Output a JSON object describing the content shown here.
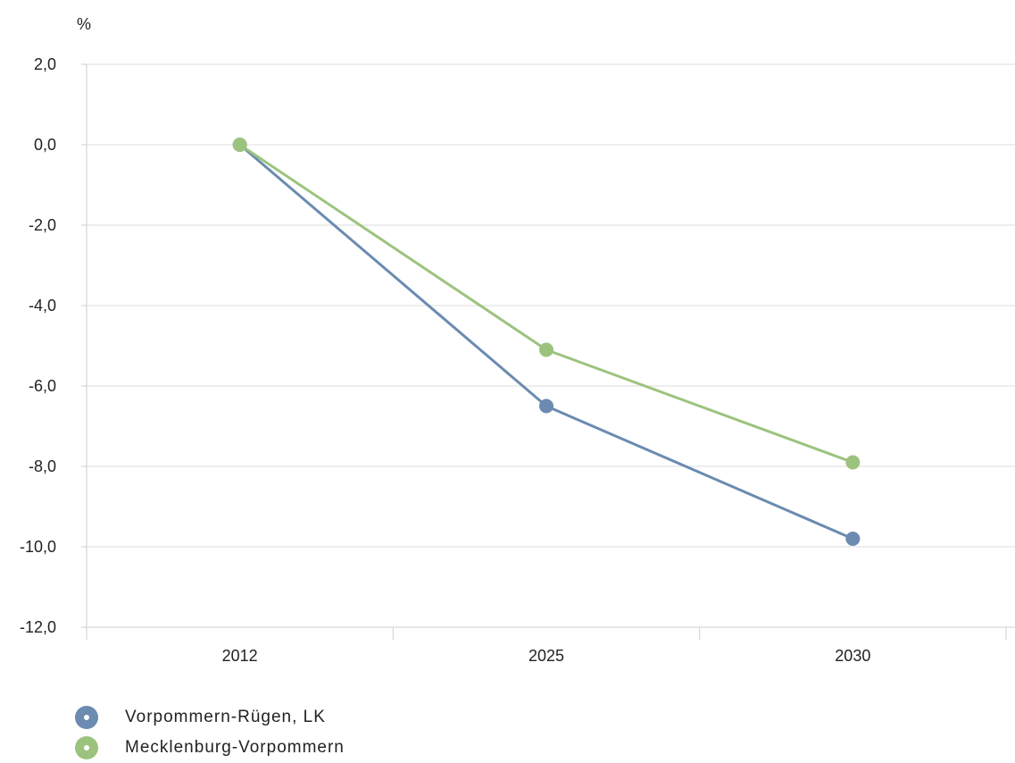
{
  "chart_data": {
    "type": "line",
    "unit_label": "%",
    "categories": [
      "2012",
      "2025",
      "2030"
    ],
    "ylim": [
      -12,
      2
    ],
    "yticks": [
      2,
      0,
      -2,
      -4,
      -6,
      -8,
      -10,
      -12
    ],
    "ytick_labels": [
      "2,0",
      "0,0",
      "-2,0",
      "-4,0",
      "-6,0",
      "-8,0",
      "-10,0",
      "-12,0"
    ],
    "grid": true,
    "legend_position": "bottom-left",
    "series": [
      {
        "name": "Vorpommern-Rügen, LK",
        "values": [
          0.0,
          -6.5,
          -9.8
        ],
        "color": "#6b8bb0"
      },
      {
        "name": "Mecklenburg-Vorpommern",
        "values": [
          0.0,
          -5.1,
          -7.9
        ],
        "color": "#9cc37e"
      }
    ]
  }
}
